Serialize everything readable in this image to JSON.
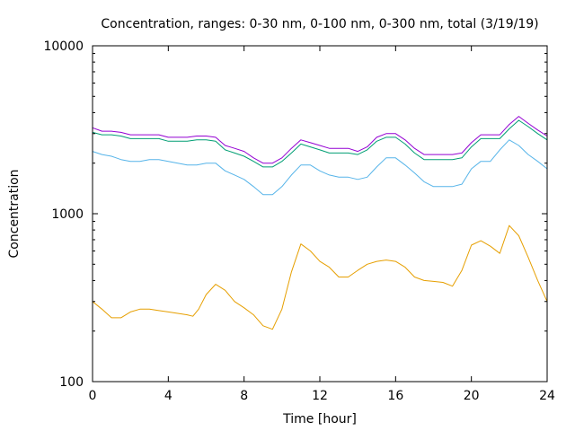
{
  "chart_data": {
    "type": "line",
    "title": "Concentration, ranges: 0-30 nm, 0-100 nm, 0-300 nm, total (3/19/19)",
    "xlabel": "Time [hour]",
    "ylabel": "Concentration",
    "xlim": [
      0,
      24
    ],
    "ylim": [
      100,
      10000
    ],
    "yscale": "log",
    "grid": false,
    "legend": "none",
    "x_ticks": [
      0,
      4,
      8,
      12,
      16,
      20,
      24
    ],
    "y_ticks": [
      100,
      1000,
      10000
    ],
    "series": [
      {
        "color": "#e69f00",
        "x": [
          0,
          0.5,
          1,
          1.5,
          2,
          2.5,
          3,
          3.5,
          4,
          4.5,
          5,
          5.3,
          5.6,
          6,
          6.5,
          7,
          7.5,
          8,
          8.5,
          9,
          9.5,
          10,
          10.5,
          11,
          11.5,
          12,
          12.5,
          13,
          13.5,
          14,
          14.5,
          15,
          15.5,
          16,
          16.5,
          17,
          17.5,
          18,
          18.5,
          19,
          19.5,
          20,
          20.5,
          21,
          21.5,
          22,
          22.5,
          23,
          23.5,
          24
        ],
        "values": [
          300,
          270,
          240,
          240,
          260,
          270,
          270,
          265,
          260,
          255,
          250,
          245,
          270,
          330,
          380,
          350,
          300,
          275,
          250,
          215,
          205,
          270,
          450,
          660,
          600,
          520,
          480,
          420,
          420,
          460,
          500,
          520,
          530,
          520,
          480,
          420,
          400,
          395,
          390,
          370,
          460,
          650,
          690,
          640,
          580,
          850,
          740,
          550,
          400,
          300
        ]
      },
      {
        "color": "#56b4e9",
        "x": [
          0,
          0.5,
          1,
          1.5,
          2,
          2.5,
          3,
          3.5,
          4,
          4.5,
          5,
          5.5,
          6,
          6.5,
          7,
          7.5,
          8,
          8.5,
          9,
          9.5,
          10,
          10.5,
          11,
          11.5,
          12,
          12.5,
          13,
          13.5,
          14,
          14.5,
          15,
          15.5,
          16,
          16.5,
          17,
          17.5,
          18,
          18.5,
          19,
          19.5,
          20,
          20.5,
          21,
          21.5,
          22,
          22.5,
          23,
          23.5,
          24
        ],
        "values": [
          2350,
          2250,
          2200,
          2100,
          2050,
          2050,
          2100,
          2100,
          2050,
          2000,
          1950,
          1950,
          2000,
          2000,
          1800,
          1700,
          1600,
          1450,
          1300,
          1300,
          1450,
          1700,
          1950,
          1950,
          1800,
          1700,
          1650,
          1650,
          1600,
          1650,
          1900,
          2150,
          2150,
          1950,
          1750,
          1550,
          1450,
          1450,
          1450,
          1500,
          1850,
          2050,
          2050,
          2400,
          2750,
          2550,
          2250,
          2050,
          1850
        ]
      },
      {
        "color": "#009e73",
        "x": [
          0,
          0.5,
          1,
          1.5,
          2,
          2.5,
          3,
          3.5,
          4,
          4.5,
          5,
          5.5,
          6,
          6.5,
          7,
          7.5,
          8,
          8.5,
          9,
          9.5,
          10,
          10.5,
          11,
          11.5,
          12,
          12.5,
          13,
          13.5,
          14,
          14.5,
          15,
          15.5,
          16,
          16.5,
          17,
          17.5,
          18,
          18.5,
          19,
          19.5,
          20,
          20.5,
          21,
          21.5,
          22,
          22.5,
          23,
          23.5,
          24
        ],
        "values": [
          3050,
          2950,
          2950,
          2900,
          2800,
          2800,
          2800,
          2800,
          2700,
          2700,
          2700,
          2750,
          2750,
          2700,
          2400,
          2300,
          2200,
          2050,
          1900,
          1900,
          2050,
          2300,
          2600,
          2500,
          2400,
          2300,
          2300,
          2300,
          2250,
          2400,
          2700,
          2850,
          2850,
          2600,
          2300,
          2100,
          2100,
          2100,
          2100,
          2150,
          2500,
          2800,
          2800,
          2800,
          3200,
          3600,
          3300,
          3000,
          2750
        ]
      },
      {
        "color": "#9400d3",
        "x": [
          0,
          0.5,
          1,
          1.5,
          2,
          2.5,
          3,
          3.5,
          4,
          4.5,
          5,
          5.5,
          6,
          6.5,
          7,
          7.5,
          8,
          8.5,
          9,
          9.5,
          10,
          10.5,
          11,
          11.5,
          12,
          12.5,
          13,
          13.5,
          14,
          14.5,
          15,
          15.5,
          16,
          16.5,
          17,
          17.5,
          18,
          18.5,
          19,
          19.5,
          20,
          20.5,
          21,
          21.5,
          22,
          22.5,
          23,
          23.5,
          24
        ],
        "values": [
          3250,
          3100,
          3100,
          3050,
          2950,
          2950,
          2950,
          2950,
          2850,
          2850,
          2850,
          2900,
          2900,
          2850,
          2550,
          2450,
          2350,
          2150,
          2000,
          2000,
          2150,
          2450,
          2750,
          2650,
          2550,
          2450,
          2450,
          2450,
          2350,
          2500,
          2850,
          3000,
          3000,
          2750,
          2450,
          2250,
          2250,
          2250,
          2250,
          2300,
          2650,
          2950,
          2950,
          2950,
          3400,
          3800,
          3450,
          3150,
          2900
        ]
      }
    ]
  }
}
